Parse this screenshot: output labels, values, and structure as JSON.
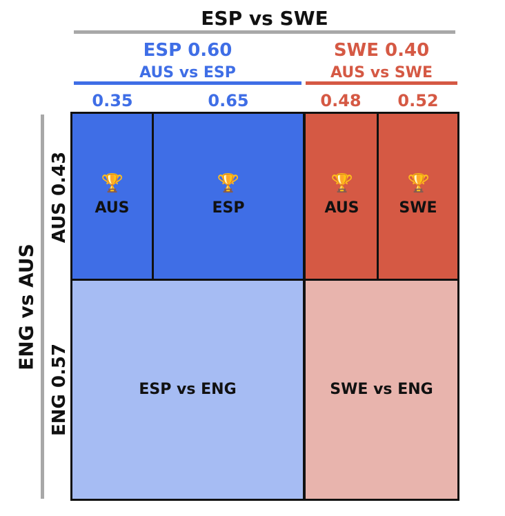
{
  "top": {
    "title": "ESP vs SWE",
    "left_header": {
      "line1": "ESP 0.60",
      "line2": "AUS vs ESP",
      "probs": [
        "0.35",
        "0.65"
      ]
    },
    "right_header": {
      "line1": "SWE 0.40",
      "line2": "AUS vs SWE",
      "probs": [
        "0.48",
        "0.52"
      ]
    }
  },
  "side": {
    "title": "ENG vs AUS",
    "upper": "AUS 0.43",
    "lower": "ENG 0.57"
  },
  "cells": {
    "top_left_a": {
      "winner": "AUS",
      "icon": "trophy-icon"
    },
    "top_left_b": {
      "winner": "ESP",
      "icon": "trophy-icon"
    },
    "top_right_a": {
      "winner": "AUS",
      "icon": "trophy-icon"
    },
    "top_right_b": {
      "winner": "SWE",
      "icon": "trophy-icon"
    },
    "bottom_left": {
      "label": "ESP vs ENG"
    },
    "bottom_right": {
      "label": "SWE vs ENG"
    }
  },
  "colors": {
    "blue": "#3f6ee6",
    "red": "#d55944",
    "light_blue": "#a6bcf3",
    "light_red": "#e8b4ad",
    "gray": "#a8a8a8",
    "text": "#111111"
  }
}
